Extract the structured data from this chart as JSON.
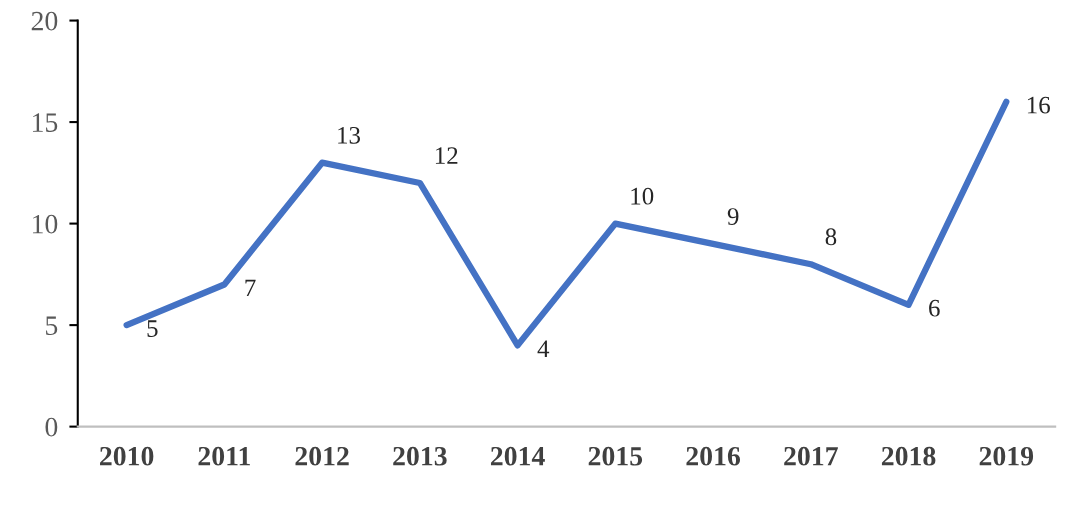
{
  "chart_data": {
    "type": "line",
    "categories": [
      "2010",
      "2011",
      "2012",
      "2013",
      "2014",
      "2015",
      "2016",
      "2017",
      "2018",
      "2019"
    ],
    "series": [
      {
        "color": "#4472c4",
        "values": [
          5,
          7,
          13,
          12,
          4,
          10,
          9,
          8,
          6,
          16
        ]
      }
    ],
    "ylim": [
      0,
      20
    ],
    "yticks": [
      0,
      5,
      10,
      15,
      20
    ],
    "data_labels": true,
    "grid": false,
    "legend": false,
    "marker": "none",
    "line_style": "solid"
  }
}
